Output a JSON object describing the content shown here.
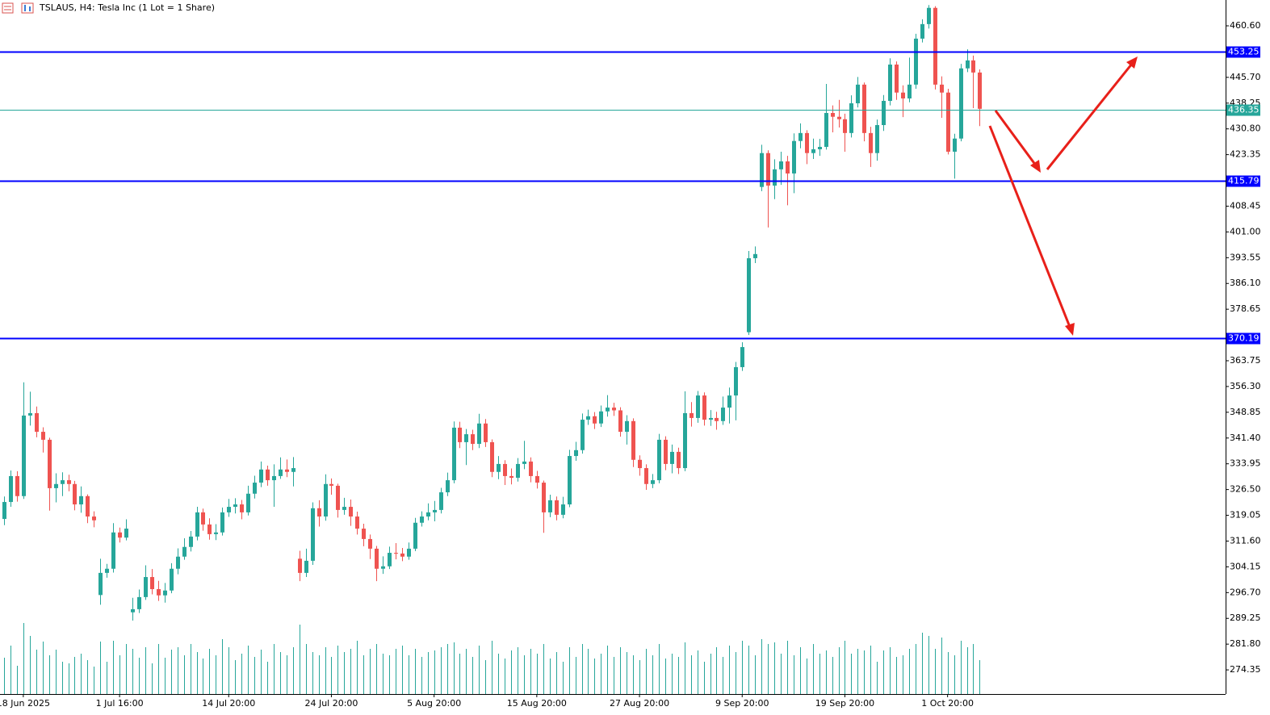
{
  "chart_data": {
    "type": "candlestick",
    "title": "TSLAUS, H4:  Tesla Inc (1 Lot = 1 Share)",
    "up_color": "#26a69a",
    "down_color": "#ef5350",
    "volume_color": "#26a69a",
    "ylim": [
      267.37,
      468.07
    ],
    "yticks": [
      {
        "value": 460.6,
        "label": "460.60"
      },
      {
        "value": 445.7,
        "label": "445.70"
      },
      {
        "value": 438.25,
        "label": "438.25"
      },
      {
        "value": 430.8,
        "label": "430.80"
      },
      {
        "value": 423.35,
        "label": "423.35"
      },
      {
        "value": 408.45,
        "label": "408.45"
      },
      {
        "value": 401,
        "label": "401.00"
      },
      {
        "value": 393.55,
        "label": "393.55"
      },
      {
        "value": 386.1,
        "label": "386.10"
      },
      {
        "value": 378.65,
        "label": "378.65"
      },
      {
        "value": 363.75,
        "label": "363.75"
      },
      {
        "value": 356.3,
        "label": "356.30"
      },
      {
        "value": 348.85,
        "label": "348.85"
      },
      {
        "value": 341.4,
        "label": "341.40"
      },
      {
        "value": 333.95,
        "label": "333.95"
      },
      {
        "value": 326.5,
        "label": "326.50"
      },
      {
        "value": 319.05,
        "label": "319.05"
      },
      {
        "value": 311.6,
        "label": "311.60"
      },
      {
        "value": 304.15,
        "label": "304.15"
      },
      {
        "value": 296.7,
        "label": "296.70"
      },
      {
        "value": 289.25,
        "label": "289.25"
      },
      {
        "value": 281.8,
        "label": "281.80"
      },
      {
        "value": 274.35,
        "label": "274.35"
      }
    ],
    "levels": [
      {
        "value": 453.25,
        "color": "#0000ff"
      },
      {
        "value": 436.35,
        "color": "#26a69a"
      },
      {
        "value": 415.79,
        "color": "#0000ff"
      },
      {
        "value": 370.19,
        "color": "#0000ff"
      }
    ],
    "categories": [
      null,
      null,
      null,
      "18 Jun 2025",
      null,
      null,
      null,
      null,
      null,
      null,
      null,
      null,
      null,
      null,
      null,
      null,
      null,
      null,
      "1 Jul 16:00",
      null,
      null,
      null,
      null,
      null,
      null,
      null,
      null,
      null,
      null,
      null,
      null,
      null,
      null,
      null,
      null,
      "14 Jul 20:00",
      null,
      null,
      null,
      null,
      null,
      null,
      null,
      null,
      null,
      null,
      null,
      null,
      null,
      null,
      null,
      "24 Jul 20:00",
      null,
      null,
      null,
      null,
      null,
      null,
      null,
      null,
      null,
      null,
      null,
      null,
      null,
      null,
      null,
      "5 Aug 20:00",
      null,
      null,
      null,
      null,
      null,
      null,
      null,
      null,
      null,
      null,
      null,
      null,
      null,
      null,
      null,
      "15 Aug 20:00",
      null,
      null,
      null,
      null,
      null,
      null,
      null,
      null,
      null,
      null,
      null,
      null,
      null,
      null,
      null,
      "27 Aug 20:00",
      null,
      null,
      null,
      null,
      null,
      null,
      null,
      null,
      null,
      null,
      null,
      null,
      null,
      null,
      null,
      "9 Sep 20:00",
      null,
      null,
      null,
      null,
      null,
      null,
      null,
      null,
      null,
      null,
      null,
      null,
      null,
      null,
      null,
      "19 Sep 20:00",
      null,
      null,
      null,
      null,
      null,
      null,
      null,
      null,
      null,
      null,
      null,
      null,
      null,
      null,
      null,
      "1 Oct 20:00",
      null,
      null,
      null,
      null,
      null
    ],
    "ohlc": [
      [
        318.0,
        324.5,
        316.2,
        322.9
      ],
      [
        322.9,
        332.0,
        321.5,
        330.4
      ],
      [
        330.4,
        331.8,
        323.0,
        324.6
      ],
      [
        324.6,
        357.5,
        323.8,
        347.9
      ],
      [
        347.9,
        354.8,
        345.0,
        348.6
      ],
      [
        348.6,
        350.5,
        341.6,
        343.2
      ],
      [
        343.2,
        344.5,
        337.2,
        340.9
      ],
      [
        340.9,
        341.5,
        320.4,
        326.9
      ],
      [
        326.9,
        331.2,
        322.8,
        328.1
      ],
      [
        328.1,
        331.5,
        324.6,
        329.2
      ],
      [
        329.2,
        330.8,
        326.0,
        328.1
      ],
      [
        328.1,
        329.0,
        320.5,
        322.2
      ],
      [
        322.2,
        327.4,
        319.8,
        324.6
      ],
      [
        324.6,
        325.1,
        316.8,
        318.7
      ],
      [
        318.7,
        320.2,
        315.6,
        317.6
      ],
      [
        296.0,
        306.5,
        293.2,
        302.4
      ],
      [
        302.4,
        305.0,
        301.0,
        303.6
      ],
      [
        303.6,
        316.8,
        302.5,
        314.1
      ],
      [
        314.1,
        315.5,
        311.2,
        312.6
      ],
      [
        312.6,
        317.9,
        311.8,
        315.2
      ],
      [
        291.0,
        295.2,
        288.6,
        291.9
      ],
      [
        291.9,
        297.6,
        290.8,
        295.4
      ],
      [
        295.4,
        304.6,
        294.6,
        301.2
      ],
      [
        301.2,
        303.5,
        296.2,
        297.7
      ],
      [
        297.7,
        300.1,
        294.3,
        295.9
      ],
      [
        295.9,
        299.5,
        293.8,
        297.3
      ],
      [
        297.3,
        305.2,
        296.5,
        303.6
      ],
      [
        303.6,
        309.5,
        302.0,
        307.1
      ],
      [
        307.1,
        312.4,
        306.2,
        309.9
      ],
      [
        309.9,
        314.5,
        308.6,
        312.9
      ],
      [
        312.9,
        321.5,
        311.8,
        319.9
      ],
      [
        319.9,
        321.0,
        314.6,
        316.4
      ],
      [
        316.4,
        318.2,
        312.0,
        313.6
      ],
      [
        313.6,
        316.5,
        311.9,
        314.1
      ],
      [
        314.1,
        321.3,
        313.2,
        319.9
      ],
      [
        319.9,
        323.8,
        318.6,
        321.5
      ],
      [
        321.5,
        324.0,
        319.6,
        322.2
      ],
      [
        322.2,
        323.5,
        317.9,
        319.9
      ],
      [
        319.9,
        327.6,
        319.0,
        325.3
      ],
      [
        325.3,
        330.5,
        323.9,
        328.5
      ],
      [
        328.5,
        334.6,
        327.2,
        332.3
      ],
      [
        332.3,
        333.4,
        327.6,
        329.2
      ],
      [
        329.2,
        333.8,
        321.5,
        330.4
      ],
      [
        330.4,
        335.8,
        329.6,
        332.3
      ],
      [
        332.3,
        335.2,
        330.1,
        331.6
      ],
      [
        331.6,
        335.9,
        327.4,
        332.7
      ],
      [
        306.5,
        308.8,
        300.0,
        302.4
      ],
      [
        302.4,
        309.4,
        301.2,
        305.9
      ],
      [
        305.9,
        322.8,
        304.7,
        321.1
      ],
      [
        321.1,
        323.4,
        315.8,
        318.7
      ],
      [
        318.7,
        330.9,
        317.5,
        328.1
      ],
      [
        328.1,
        329.7,
        325.0,
        327.6
      ],
      [
        327.6,
        328.2,
        318.4,
        320.6
      ],
      [
        320.6,
        324.1,
        319.2,
        321.5
      ],
      [
        321.5,
        323.6,
        316.0,
        318.7
      ],
      [
        318.7,
        320.1,
        313.5,
        315.2
      ],
      [
        315.2,
        316.6,
        310.1,
        312.2
      ],
      [
        312.2,
        313.5,
        306.4,
        309.4
      ],
      [
        309.4,
        310.2,
        300.0,
        303.6
      ],
      [
        303.6,
        307.2,
        302.1,
        304.3
      ],
      [
        304.3,
        310.0,
        303.5,
        308.2
      ],
      [
        308.2,
        311.0,
        306.3,
        308.0
      ],
      [
        308.0,
        309.6,
        305.8,
        307.1
      ],
      [
        307.1,
        311.2,
        306.2,
        309.4
      ],
      [
        309.4,
        318.3,
        308.7,
        316.9
      ],
      [
        316.9,
        320.2,
        315.8,
        318.7
      ],
      [
        318.7,
        322.5,
        317.6,
        319.9
      ],
      [
        319.9,
        323.2,
        317.3,
        320.6
      ],
      [
        320.6,
        327.0,
        319.6,
        325.7
      ],
      [
        325.7,
        331.4,
        324.6,
        329.2
      ],
      [
        329.2,
        346.2,
        328.3,
        344.4
      ],
      [
        344.4,
        346.1,
        338.5,
        340.2
      ],
      [
        340.2,
        344.0,
        333.6,
        342.5
      ],
      [
        342.5,
        343.8,
        337.9,
        339.7
      ],
      [
        339.7,
        348.4,
        338.5,
        345.6
      ],
      [
        345.6,
        346.9,
        338.8,
        340.2
      ],
      [
        340.2,
        341.0,
        330.1,
        331.6
      ],
      [
        331.6,
        336.2,
        329.5,
        333.9
      ],
      [
        333.9,
        335.0,
        327.8,
        330.4
      ],
      [
        330.4,
        332.6,
        328.0,
        329.9
      ],
      [
        329.9,
        335.6,
        328.8,
        333.9
      ],
      [
        333.9,
        340.6,
        332.4,
        334.6
      ],
      [
        334.6,
        335.8,
        328.6,
        330.4
      ],
      [
        330.4,
        331.9,
        326.8,
        328.5
      ],
      [
        328.5,
        329.1,
        314.0,
        319.9
      ],
      [
        319.9,
        325.0,
        318.5,
        323.4
      ],
      [
        323.4,
        324.5,
        317.6,
        319.2
      ],
      [
        319.2,
        324.4,
        318.2,
        322.2
      ],
      [
        322.2,
        338.0,
        321.4,
        336.2
      ],
      [
        336.2,
        340.3,
        334.8,
        337.9
      ],
      [
        337.9,
        348.5,
        336.9,
        346.7
      ],
      [
        346.7,
        349.6,
        345.2,
        347.7
      ],
      [
        347.7,
        348.9,
        344.0,
        345.6
      ],
      [
        345.6,
        350.8,
        344.6,
        349.1
      ],
      [
        349.1,
        353.8,
        347.6,
        350.2
      ],
      [
        350.2,
        351.6,
        347.8,
        349.4
      ],
      [
        349.4,
        350.3,
        341.8,
        343.2
      ],
      [
        343.2,
        348.0,
        339.5,
        346.3
      ],
      [
        346.3,
        347.1,
        333.0,
        335.1
      ],
      [
        335.1,
        336.4,
        330.5,
        332.7
      ],
      [
        332.7,
        333.8,
        326.4,
        328.1
      ],
      [
        328.1,
        331.0,
        326.9,
        329.2
      ],
      [
        329.2,
        342.6,
        328.3,
        340.9
      ],
      [
        340.9,
        341.9,
        332.1,
        333.9
      ],
      [
        333.9,
        339.5,
        331.2,
        337.4
      ],
      [
        337.4,
        338.6,
        331.0,
        332.7
      ],
      [
        332.7,
        354.9,
        331.8,
        348.6
      ],
      [
        348.6,
        351.8,
        344.7,
        347.2
      ],
      [
        347.2,
        355.0,
        345.8,
        353.7
      ],
      [
        353.7,
        354.6,
        345.0,
        346.7
      ],
      [
        346.7,
        349.5,
        344.9,
        347.2
      ],
      [
        347.2,
        349.0,
        343.8,
        346.3
      ],
      [
        346.3,
        353.4,
        345.2,
        350.2
      ],
      [
        350.2,
        356.0,
        345.6,
        353.7
      ],
      [
        353.7,
        363.4,
        346.5,
        361.9
      ],
      [
        361.9,
        369.1,
        360.8,
        367.7
      ],
      [
        372.0,
        395.5,
        371.2,
        393.4
      ],
      [
        393.4,
        396.8,
        392.0,
        394.6
      ],
      [
        414.0,
        426.2,
        412.8,
        423.8
      ],
      [
        423.8,
        424.6,
        402.3,
        414.4
      ],
      [
        414.4,
        422.0,
        410.5,
        419.1
      ],
      [
        419.1,
        424.2,
        414.6,
        421.4
      ],
      [
        421.4,
        423.0,
        408.7,
        417.9
      ],
      [
        417.9,
        429.5,
        412.2,
        427.3
      ],
      [
        427.3,
        432.4,
        425.2,
        429.6
      ],
      [
        429.6,
        430.4,
        420.6,
        423.8
      ],
      [
        423.8,
        428.0,
        422.1,
        424.9
      ],
      [
        424.9,
        427.9,
        423.0,
        425.6
      ],
      [
        425.6,
        443.8,
        424.8,
        435.4
      ],
      [
        435.4,
        437.6,
        429.8,
        434.3
      ],
      [
        434.3,
        439.2,
        431.2,
        433.6
      ],
      [
        433.6,
        435.2,
        424.2,
        429.6
      ],
      [
        429.6,
        440.5,
        428.3,
        438.2
      ],
      [
        438.2,
        445.8,
        437.0,
        443.6
      ],
      [
        443.6,
        444.2,
        427.2,
        429.6
      ],
      [
        429.6,
        431.4,
        419.8,
        423.8
      ],
      [
        423.8,
        433.5,
        421.6,
        431.9
      ],
      [
        431.9,
        440.6,
        430.2,
        438.9
      ],
      [
        438.9,
        451.2,
        437.6,
        449.4
      ],
      [
        449.4,
        450.3,
        439.2,
        441.3
      ],
      [
        441.3,
        443.4,
        434.2,
        439.6
      ],
      [
        439.6,
        451.4,
        438.5,
        443.6
      ],
      [
        443.6,
        458.3,
        442.4,
        456.9
      ],
      [
        456.9,
        462.5,
        455.8,
        461.1
      ],
      [
        461.1,
        466.6,
        459.8,
        465.8
      ],
      [
        465.8,
        466.3,
        442.2,
        443.6
      ],
      [
        443.6,
        446.0,
        434.0,
        441.3
      ],
      [
        441.3,
        442.4,
        423.4,
        424.2
      ],
      [
        424.2,
        429.4,
        416.4,
        428.0
      ],
      [
        428.0,
        449.6,
        427.2,
        448.3
      ],
      [
        448.3,
        453.8,
        447.2,
        450.6
      ],
      [
        450.6,
        452.0,
        436.8,
        447.1
      ],
      [
        447.1,
        448.0,
        431.6,
        436.6
      ]
    ],
    "volume": [
      45,
      60,
      35,
      88,
      72,
      55,
      65,
      48,
      55,
      40,
      38,
      46,
      50,
      42,
      34,
      65,
      40,
      66,
      48,
      62,
      56,
      45,
      58,
      38,
      62,
      45,
      55,
      58,
      48,
      62,
      52,
      44,
      56,
      48,
      68,
      58,
      42,
      50,
      60,
      46,
      55,
      40,
      62,
      52,
      48,
      58,
      86,
      62,
      52,
      48,
      58,
      46,
      60,
      52,
      56,
      66,
      48,
      56,
      62,
      50,
      48,
      56,
      60,
      48,
      56,
      46,
      52,
      54,
      58,
      62,
      64,
      50,
      56,
      46,
      60,
      42,
      66,
      50,
      44,
      54,
      58,
      48,
      56,
      50,
      62,
      44,
      52,
      40,
      58,
      46,
      62,
      56,
      44,
      50,
      60,
      46,
      58,
      52,
      48,
      42,
      56,
      48,
      62,
      44,
      50,
      46,
      64,
      48,
      54,
      40,
      50,
      58,
      46,
      60,
      52,
      66,
      60,
      48,
      68,
      62,
      64,
      50,
      66,
      48,
      58,
      44,
      62,
      50,
      54,
      46,
      58,
      66,
      50,
      56,
      54,
      60,
      40,
      54,
      58,
      46,
      48,
      56,
      62,
      76,
      72,
      56,
      70,
      52,
      48,
      66,
      58,
      62,
      42
    ]
  }
}
